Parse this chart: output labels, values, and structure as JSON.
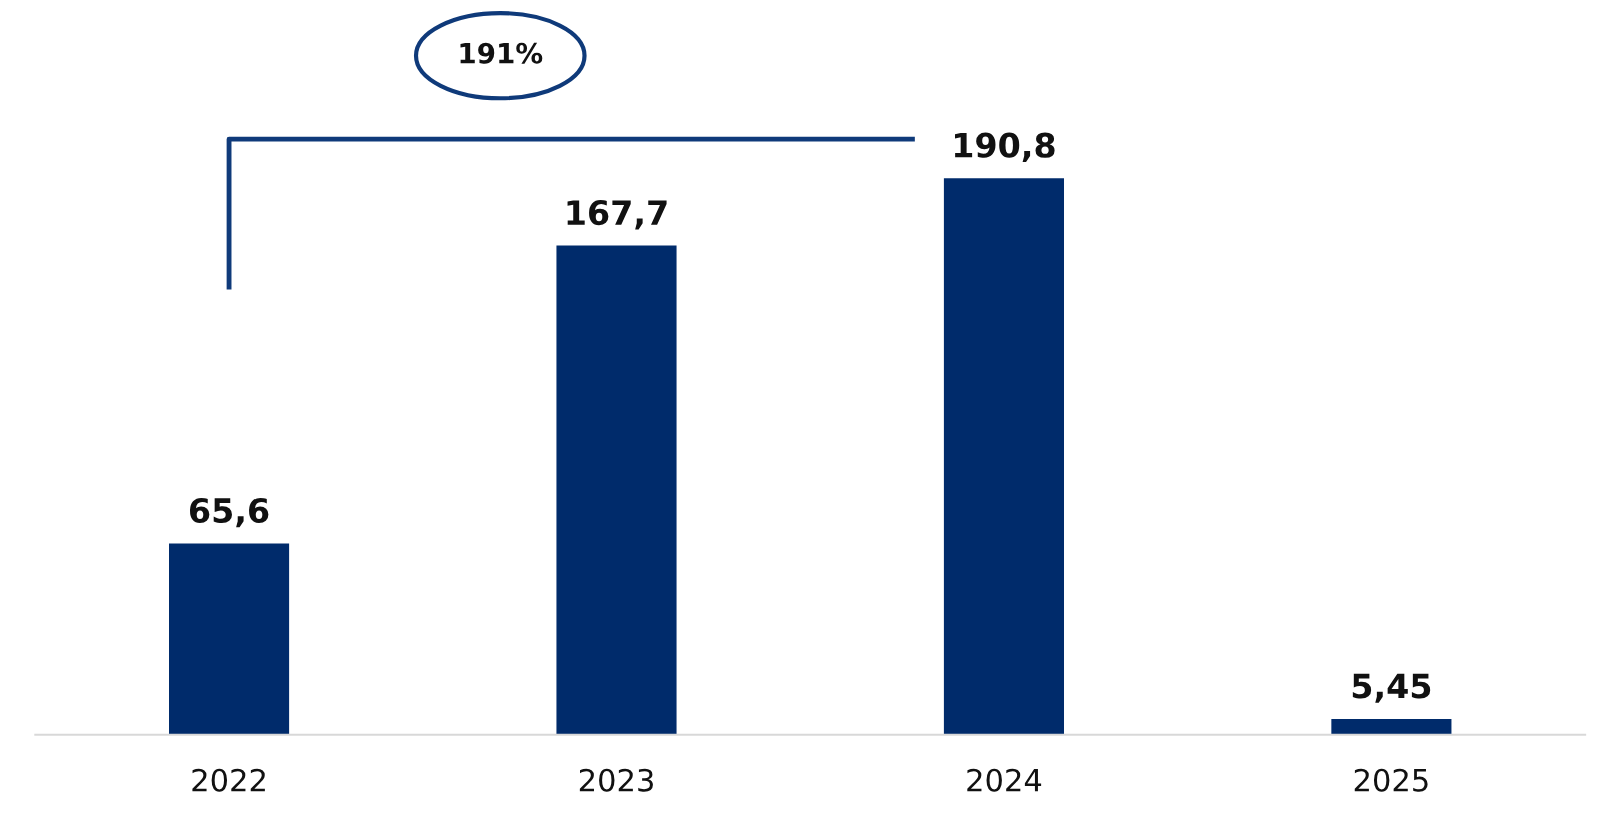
{
  "chart_data": {
    "type": "bar",
    "categories": [
      "2022",
      "2023",
      "2024",
      "2025"
    ],
    "values": [
      65.6,
      167.7,
      190.8,
      5.45
    ],
    "value_labels": [
      "65,6",
      "167,7",
      "190,8",
      "5,45"
    ],
    "color": "#002b6b",
    "annotations": [
      "191%"
    ]
  }
}
